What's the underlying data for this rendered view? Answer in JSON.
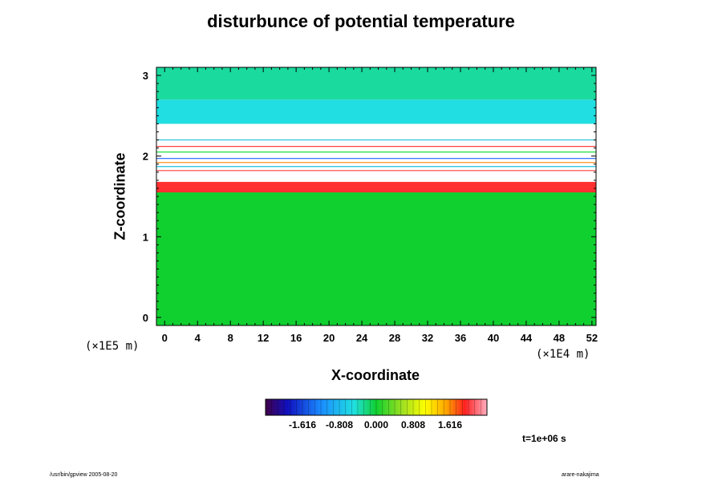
{
  "chart_data": {
    "type": "heatmap",
    "title": "disturbunce of potential temperature",
    "xlabel": "X-coordinate",
    "ylabel": "Z-coordinate",
    "x_unit": "(×1E4 m)",
    "y_unit": "(×1E5 m)",
    "xlim": [
      -1,
      52.5
    ],
    "ylim": [
      -0.1,
      3.1
    ],
    "x_ticks": [
      0,
      4,
      8,
      12,
      16,
      20,
      24,
      28,
      32,
      36,
      40,
      44,
      48,
      52
    ],
    "y_ticks": [
      0,
      1,
      2,
      3
    ],
    "colorbar": {
      "min": -2.424,
      "max": 2.424,
      "ticks": [
        -1.616,
        -0.808,
        0.0,
        0.808,
        1.616
      ],
      "tick_labels": [
        "-1.616",
        "-0.808",
        "0.000",
        "0.808",
        "1.616"
      ]
    },
    "bands": [
      {
        "z_range": [
          -0.1,
          1.55
        ],
        "value": 0.0
      },
      {
        "z_range": [
          1.55,
          1.65
        ],
        "value": 1.8
      },
      {
        "z_range": [
          1.65,
          2.4
        ],
        "value": 2.6
      },
      {
        "z_range": [
          2.4,
          2.7
        ],
        "value": -0.5
      },
      {
        "z_range": [
          2.7,
          3.1
        ],
        "value": -0.3
      }
    ],
    "time_label": "t=1e+06 s"
  },
  "footer": {
    "left": "/usr/bin/gpview 2005-08-20",
    "right": "arare-nakajima"
  }
}
